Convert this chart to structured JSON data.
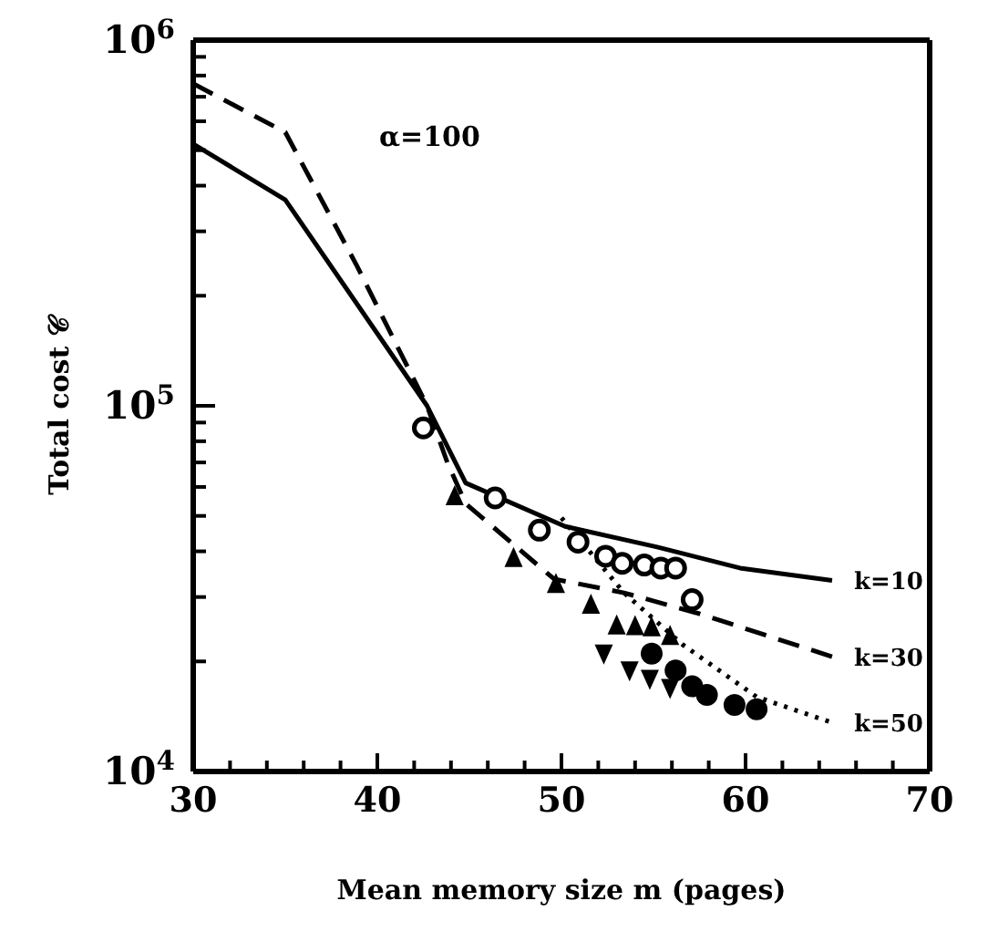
{
  "chart_data": {
    "type": "line",
    "xlabel": "Mean memory size m (pages)",
    "ylabel": "Total cost 𝒞",
    "annotations": [
      "α=100"
    ],
    "log": "y",
    "legend": false,
    "grid": false,
    "xlim": [
      30,
      70
    ],
    "xticks": [
      30,
      {
        "value": 32,
        "label": null
      },
      {
        "value": 34,
        "label": null
      },
      {
        "value": 36,
        "label": null
      },
      {
        "value": 38,
        "label": null
      },
      40,
      {
        "value": 42,
        "label": null
      },
      {
        "value": 44,
        "label": null
      },
      {
        "value": 46,
        "label": null
      },
      {
        "value": 48,
        "label": null
      },
      50,
      {
        "value": 52,
        "label": null
      },
      {
        "value": 54,
        "label": null
      },
      {
        "value": 56,
        "label": null
      },
      {
        "value": 58,
        "label": null
      },
      60,
      {
        "value": 62,
        "label": null
      },
      {
        "value": 64,
        "label": null
      },
      {
        "value": 66,
        "label": null
      },
      {
        "value": 68,
        "label": null
      },
      70
    ],
    "ylim": [
      10000,
      1000000
    ],
    "yticks": [
      {
        "value": 10000,
        "label": "10$^{4}$"
      },
      {
        "value": 20000,
        "label": null
      },
      {
        "value": 30000,
        "label": null
      },
      {
        "value": 40000,
        "label": null
      },
      {
        "value": 50000,
        "label": null
      },
      {
        "value": 60000,
        "label": null
      },
      {
        "value": 70000,
        "label": null
      },
      {
        "value": 80000,
        "label": null
      },
      {
        "value": 90000,
        "label": null
      },
      {
        "value": 100000,
        "label": "10$^{5}$"
      },
      {
        "value": 200000,
        "label": null
      },
      {
        "value": 300000,
        "label": null
      },
      {
        "value": 400000,
        "label": null
      },
      {
        "value": 500000,
        "label": null
      },
      {
        "value": 600000,
        "label": null
      },
      {
        "value": 700000,
        "label": null
      },
      {
        "value": 800000,
        "label": null
      },
      {
        "value": 900000,
        "label": null
      },
      {
        "value": 1000000,
        "label": "10$^{6}$"
      }
    ],
    "series": [
      {
        "name": "k=10",
        "line_style": "solid",
        "marker": "none",
        "color": "#000000",
        "x": [
          30,
          35,
          42.7,
          44.8,
          50.2,
          55.2,
          59.7,
          64.7
        ],
        "values": [
          520000,
          366000,
          100000,
          61500,
          46800,
          41100,
          36000,
          33300
        ]
      },
      {
        "name": "k=30",
        "line_style": "dashed",
        "marker": "none",
        "color": "#000000",
        "x": [
          30,
          35,
          38.9,
          42.7,
          43.8,
          44.8,
          49.6,
          53.4,
          57.5,
          64.7
        ],
        "values": [
          760000,
          560000,
          241000,
          100000,
          70000,
          54000,
          33600,
          30800,
          27000,
          20600
        ]
      },
      {
        "name": "k=50",
        "line_style": "dotted",
        "marker": "none",
        "color": "#000000",
        "x": [
          50.0,
          53.4,
          56.6,
          60.6,
          64.7
        ],
        "values": [
          49400,
          30800,
          22200,
          16000,
          13600
        ]
      },
      {
        "type": "scatter",
        "marker": "circle",
        "color": "#000000",
        "x": [
          42.5,
          46.4,
          48.8,
          50.9,
          52.4,
          53.3,
          54.5,
          55.4,
          56.2,
          57.1
        ],
        "values": [
          87000,
          56000,
          45700,
          42400,
          38800,
          37100,
          36700,
          36000,
          36000,
          29500
        ]
      },
      {
        "type": "scatter",
        "marker": "triangle",
        "color": "#000000",
        "x": [
          44.2,
          47.4,
          49.7,
          51.6,
          53.0,
          54.0,
          54.9,
          55.9
        ],
        "values": [
          56600,
          38400,
          32600,
          28600,
          25100,
          25000,
          24800,
          23500
        ]
      },
      {
        "type": "scatter",
        "marker": "triangle-down",
        "color": "#000000",
        "x": [
          52.3,
          53.7,
          54.8,
          55.9
        ],
        "values": [
          21000,
          18900,
          17900,
          16900
        ]
      },
      {
        "type": "scatter",
        "marker": "filled-circle",
        "color": "#000000",
        "x": [
          54.9,
          56.2,
          57.1,
          57.9,
          59.4,
          60.6
        ],
        "values": [
          21000,
          18900,
          17100,
          16200,
          15200,
          14800
        ]
      }
    ]
  }
}
